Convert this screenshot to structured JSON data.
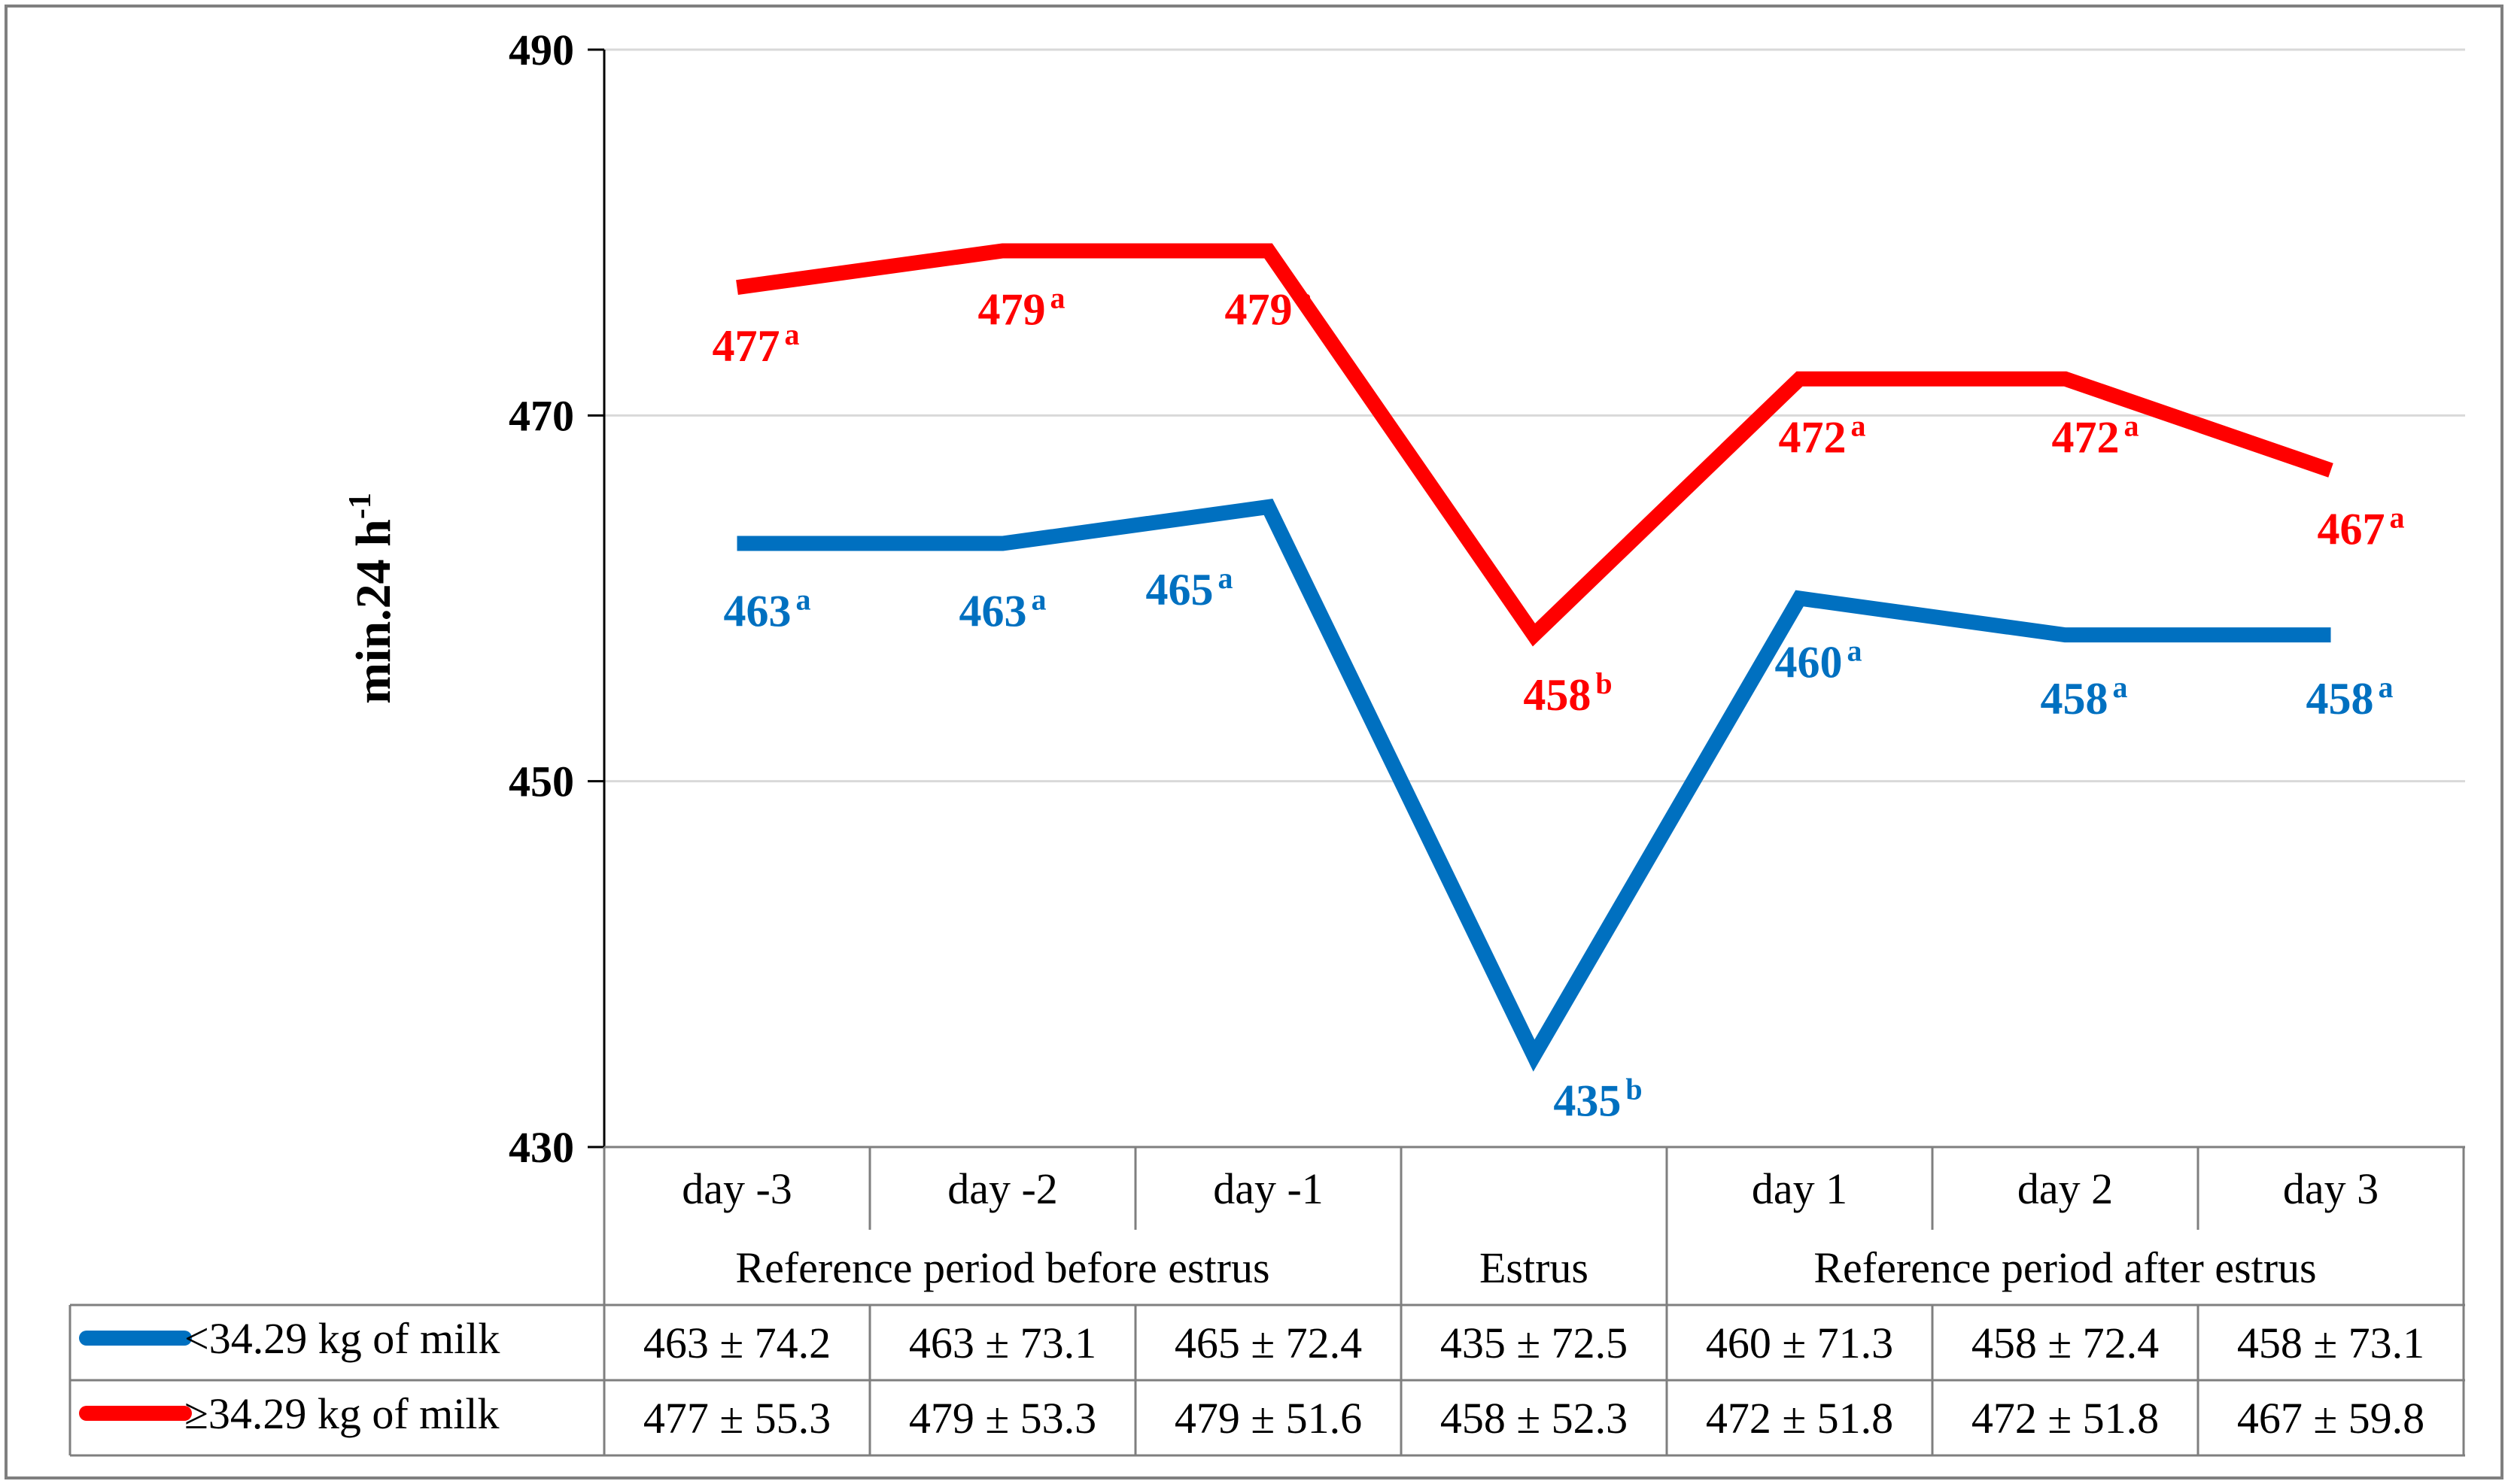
{
  "chart_data": {
    "type": "line",
    "ylabel": "min.24 h",
    "ylabel_sup": "-1",
    "ylim": [
      430,
      490
    ],
    "yticks": [
      430,
      450,
      470,
      490
    ],
    "grid": true,
    "categories": [
      "day -3",
      "day -2",
      "day -1",
      "",
      "day 1",
      "day 2",
      "day 3"
    ],
    "groups": [
      {
        "label": "Reference period before estrus",
        "span": 3
      },
      {
        "label": "Estrus",
        "span": 1
      },
      {
        "label": "Reference period after estrus",
        "span": 3
      }
    ],
    "series": [
      {
        "name": "<34.29 kg of milk",
        "color": "#0070C0",
        "values": [
          463,
          463,
          465,
          435,
          460,
          458,
          458
        ],
        "labels": [
          "463",
          "463",
          "465",
          "435",
          "460",
          "458",
          "458"
        ],
        "superscripts": [
          "a",
          "a",
          "a",
          "b",
          "a",
          "a",
          "a"
        ],
        "table_values": [
          "463 ± 74.2",
          "463 ± 73.1",
          "465 ± 72.4",
          "435 ± 72.5",
          "460 ± 71.3",
          "458 ± 72.4",
          "458 ± 73.1"
        ]
      },
      {
        "name": "≥34.29 kg of milk",
        "color": "#FF0000",
        "values": [
          477,
          479,
          479,
          458,
          472,
          472,
          467
        ],
        "labels": [
          "477",
          "479",
          "479",
          "458",
          "472",
          "472",
          "467"
        ],
        "superscripts": [
          "a",
          "a",
          "a",
          "b",
          "a",
          "a",
          "a"
        ],
        "table_values": [
          "477 ± 55.3",
          "479 ± 53.3",
          "479 ± 51.6",
          "458 ± 52.3",
          "472 ± 51.8",
          "472 ± 51.8",
          "467 ± 59.8"
        ]
      }
    ]
  }
}
